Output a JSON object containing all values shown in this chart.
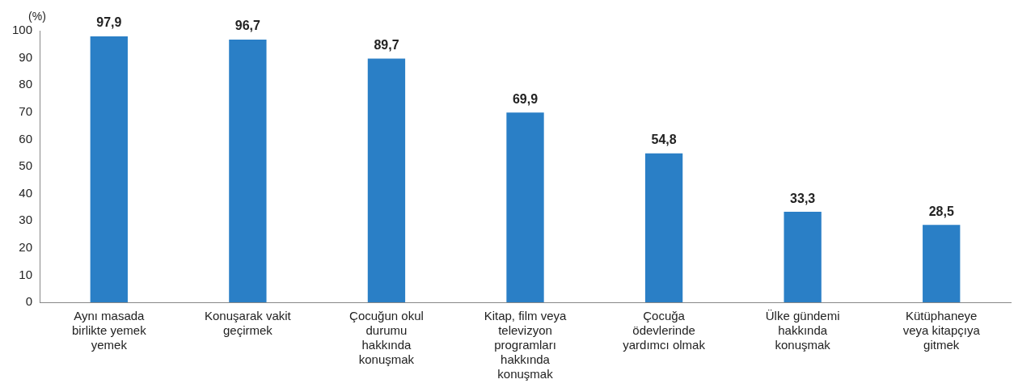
{
  "chart_data": {
    "type": "bar",
    "ylabel": "(%)",
    "categories": [
      "Aynı masada birlikte yemek yemek",
      "Konuşarak vakit geçirmek",
      "Çocuğun okul durumu hakkında konuşmak",
      "Kitap, film veya televizyon programları hakkında konuşmak",
      "Çocuğa ödevlerinde yardımcı olmak",
      "Ülke gündemi hakkında konuşmak",
      "Kütüphaneye veya kitapçıya gitmek"
    ],
    "values": [
      97.9,
      96.7,
      89.7,
      69.9,
      54.8,
      33.3,
      28.5
    ],
    "color": "#2a7fc6",
    "ylim": [
      0,
      100
    ],
    "yticks": [
      0,
      10,
      20,
      30,
      40,
      50,
      60,
      70,
      80,
      90,
      100
    ],
    "value_labels": [
      "97,9",
      "96,7",
      "89,7",
      "69,9",
      "54,8",
      "33,3",
      "28,5"
    ],
    "grid": false,
    "legend": false
  }
}
